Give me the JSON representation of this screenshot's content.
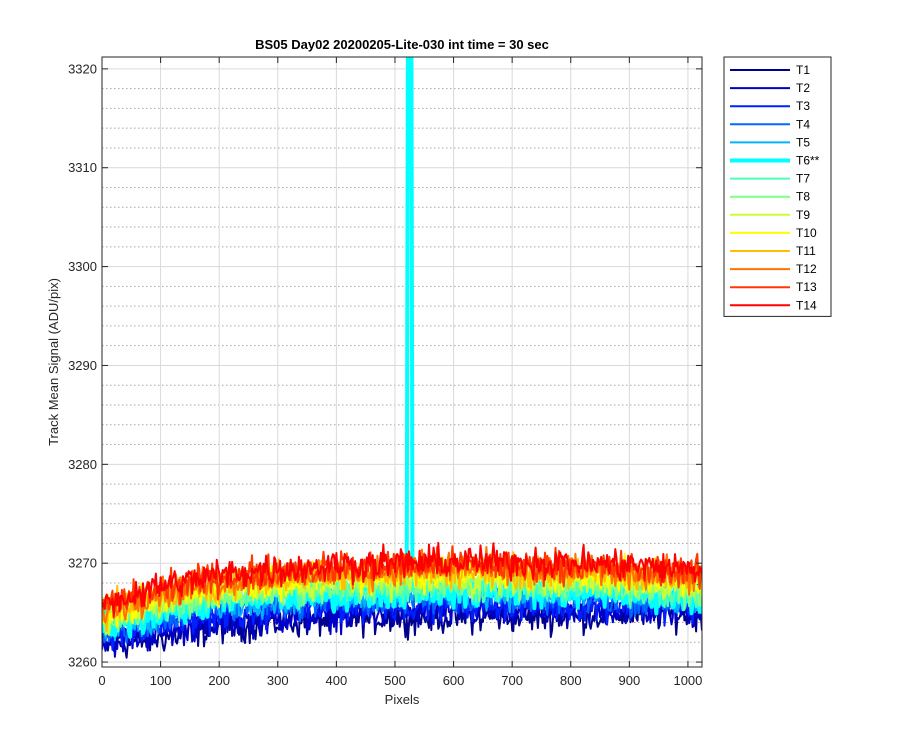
{
  "chart_data": {
    "type": "line",
    "title": "BS05 Day02 20200205-Lite-030 int time = 30 sec",
    "xlabel": "Pixels",
    "ylabel": "Track Mean Signal (ADU/pix)",
    "xlim": [
      0,
      1024
    ],
    "ylim": [
      3259.5,
      3321.2
    ],
    "xticks": [
      0,
      100,
      200,
      300,
      400,
      500,
      600,
      700,
      800,
      900,
      1000
    ],
    "yticks": [
      3260,
      3270,
      3280,
      3290,
      3300,
      3310,
      3320
    ],
    "xtick_labels": [
      "0",
      "100",
      "200",
      "300",
      "400",
      "500",
      "600",
      "700",
      "800",
      "900",
      "1000"
    ],
    "ytick_labels": [
      "3260",
      "3270",
      "3280",
      "3290",
      "3300",
      "3310",
      "3320"
    ],
    "grid": true,
    "minor_grid_y": true,
    "legend_position": "outside-right",
    "series": [
      {
        "name": "T1",
        "color": "#00008f",
        "width": 2,
        "points": [
          [
            0,
            3261.5
          ],
          [
            100,
            3262.5
          ],
          [
            200,
            3263.5
          ],
          [
            300,
            3264.0
          ],
          [
            400,
            3264.3
          ],
          [
            500,
            3264.5
          ],
          [
            600,
            3264.6
          ],
          [
            700,
            3264.6
          ],
          [
            800,
            3264.6
          ],
          [
            900,
            3264.9
          ],
          [
            1024,
            3264.8
          ]
        ]
      },
      {
        "name": "T2",
        "color": "#0000c8",
        "width": 2,
        "points": [
          [
            0,
            3262.0
          ],
          [
            100,
            3263.0
          ],
          [
            200,
            3264.0
          ],
          [
            300,
            3264.5
          ],
          [
            400,
            3264.8
          ],
          [
            500,
            3265.0
          ],
          [
            600,
            3265.1
          ],
          [
            700,
            3265.1
          ],
          [
            800,
            3265.1
          ],
          [
            900,
            3265.3
          ],
          [
            1024,
            3265.2
          ]
        ]
      },
      {
        "name": "T3",
        "color": "#0020ff",
        "width": 2,
        "points": [
          [
            0,
            3262.5
          ],
          [
            100,
            3263.8
          ],
          [
            200,
            3264.8
          ],
          [
            300,
            3265.3
          ],
          [
            400,
            3265.6
          ],
          [
            500,
            3265.8
          ],
          [
            600,
            3265.9
          ],
          [
            700,
            3265.9
          ],
          [
            800,
            3265.8
          ],
          [
            900,
            3265.8
          ],
          [
            1024,
            3265.6
          ]
        ]
      },
      {
        "name": "T4",
        "color": "#0068ff",
        "width": 2,
        "points": [
          [
            0,
            3263.0
          ],
          [
            100,
            3264.5
          ],
          [
            200,
            3265.5
          ],
          [
            300,
            3266.0
          ],
          [
            400,
            3266.3
          ],
          [
            500,
            3266.5
          ],
          [
            600,
            3266.6
          ],
          [
            700,
            3266.6
          ],
          [
            800,
            3266.5
          ],
          [
            900,
            3266.4
          ],
          [
            1024,
            3266.0
          ]
        ]
      },
      {
        "name": "T5",
        "color": "#00b4ff",
        "width": 2,
        "points": [
          [
            0,
            3263.2
          ],
          [
            100,
            3264.9
          ],
          [
            200,
            3265.9
          ],
          [
            300,
            3266.4
          ],
          [
            400,
            3266.7
          ],
          [
            500,
            3266.9
          ],
          [
            600,
            3267.0
          ],
          [
            700,
            3267.0
          ],
          [
            800,
            3266.9
          ],
          [
            900,
            3266.7
          ],
          [
            1024,
            3266.3
          ]
        ]
      },
      {
        "name": "T6**",
        "color": "#00ffff",
        "width": 4,
        "points": [
          [
            0,
            3263.5
          ],
          [
            100,
            3265.2
          ],
          [
            200,
            3266.2
          ],
          [
            300,
            3266.7
          ],
          [
            400,
            3267.0
          ],
          [
            520,
            3267.2
          ],
          [
            522,
            3321.2
          ],
          [
            528,
            3321.2
          ],
          [
            530,
            3267.2
          ],
          [
            600,
            3267.3
          ],
          [
            700,
            3267.3
          ],
          [
            800,
            3267.2
          ],
          [
            900,
            3267.0
          ],
          [
            1024,
            3266.6
          ]
        ],
        "spike_x": 525
      },
      {
        "name": "T7",
        "color": "#4dffb2",
        "width": 2,
        "points": [
          [
            0,
            3263.8
          ],
          [
            100,
            3265.5
          ],
          [
            200,
            3266.5
          ],
          [
            300,
            3267.0
          ],
          [
            400,
            3267.3
          ],
          [
            500,
            3267.5
          ],
          [
            600,
            3267.6
          ],
          [
            700,
            3267.6
          ],
          [
            800,
            3267.5
          ],
          [
            900,
            3267.3
          ],
          [
            1024,
            3266.9
          ]
        ]
      },
      {
        "name": "T8",
        "color": "#80ff80",
        "width": 2,
        "points": [
          [
            0,
            3264.0
          ],
          [
            100,
            3265.8
          ],
          [
            200,
            3266.8
          ],
          [
            300,
            3267.4
          ],
          [
            400,
            3267.7
          ],
          [
            500,
            3267.9
          ],
          [
            600,
            3268.0
          ],
          [
            700,
            3268.0
          ],
          [
            800,
            3267.9
          ],
          [
            900,
            3267.7
          ],
          [
            1024,
            3267.3
          ]
        ]
      },
      {
        "name": "T9",
        "color": "#c8ff37",
        "width": 2,
        "points": [
          [
            0,
            3264.3
          ],
          [
            100,
            3266.1
          ],
          [
            200,
            3267.2
          ],
          [
            300,
            3267.8
          ],
          [
            400,
            3268.1
          ],
          [
            500,
            3268.3
          ],
          [
            600,
            3268.4
          ],
          [
            700,
            3268.4
          ],
          [
            800,
            3268.3
          ],
          [
            900,
            3268.1
          ],
          [
            1024,
            3267.7
          ]
        ]
      },
      {
        "name": "T10",
        "color": "#ffff00",
        "width": 2,
        "points": [
          [
            0,
            3264.6
          ],
          [
            100,
            3266.5
          ],
          [
            200,
            3267.6
          ],
          [
            300,
            3268.2
          ],
          [
            400,
            3268.6
          ],
          [
            500,
            3268.8
          ],
          [
            600,
            3268.9
          ],
          [
            700,
            3268.9
          ],
          [
            800,
            3268.8
          ],
          [
            900,
            3268.6
          ],
          [
            1024,
            3268.1
          ]
        ]
      },
      {
        "name": "T11",
        "color": "#ffbf00",
        "width": 2,
        "points": [
          [
            0,
            3264.9
          ],
          [
            100,
            3266.8
          ],
          [
            200,
            3267.9
          ],
          [
            300,
            3268.5
          ],
          [
            400,
            3268.9
          ],
          [
            500,
            3269.1
          ],
          [
            600,
            3269.2
          ],
          [
            700,
            3269.2
          ],
          [
            800,
            3269.1
          ],
          [
            900,
            3268.9
          ],
          [
            1024,
            3268.4
          ]
        ]
      },
      {
        "name": "T12",
        "color": "#ff7300",
        "width": 2,
        "points": [
          [
            0,
            3265.2
          ],
          [
            100,
            3267.1
          ],
          [
            200,
            3268.2
          ],
          [
            300,
            3268.8
          ],
          [
            400,
            3269.2
          ],
          [
            500,
            3269.4
          ],
          [
            600,
            3269.5
          ],
          [
            700,
            3269.5
          ],
          [
            800,
            3269.4
          ],
          [
            900,
            3269.2
          ],
          [
            1024,
            3268.7
          ]
        ]
      },
      {
        "name": "T13",
        "color": "#ff3800",
        "width": 2,
        "points": [
          [
            0,
            3265.5
          ],
          [
            100,
            3267.4
          ],
          [
            200,
            3268.5
          ],
          [
            300,
            3269.1
          ],
          [
            400,
            3269.5
          ],
          [
            500,
            3269.7
          ],
          [
            600,
            3269.8
          ],
          [
            700,
            3269.8
          ],
          [
            800,
            3269.7
          ],
          [
            900,
            3269.5
          ],
          [
            1024,
            3269.0
          ]
        ]
      },
      {
        "name": "T14",
        "color": "#ff0000",
        "width": 2,
        "points": [
          [
            0,
            3265.8
          ],
          [
            100,
            3267.7
          ],
          [
            200,
            3268.8
          ],
          [
            300,
            3269.4
          ],
          [
            400,
            3269.8
          ],
          [
            500,
            3270.0
          ],
          [
            600,
            3270.1
          ],
          [
            700,
            3270.1
          ],
          [
            800,
            3270.0
          ],
          [
            900,
            3269.8
          ],
          [
            1024,
            3269.3
          ]
        ]
      }
    ]
  }
}
